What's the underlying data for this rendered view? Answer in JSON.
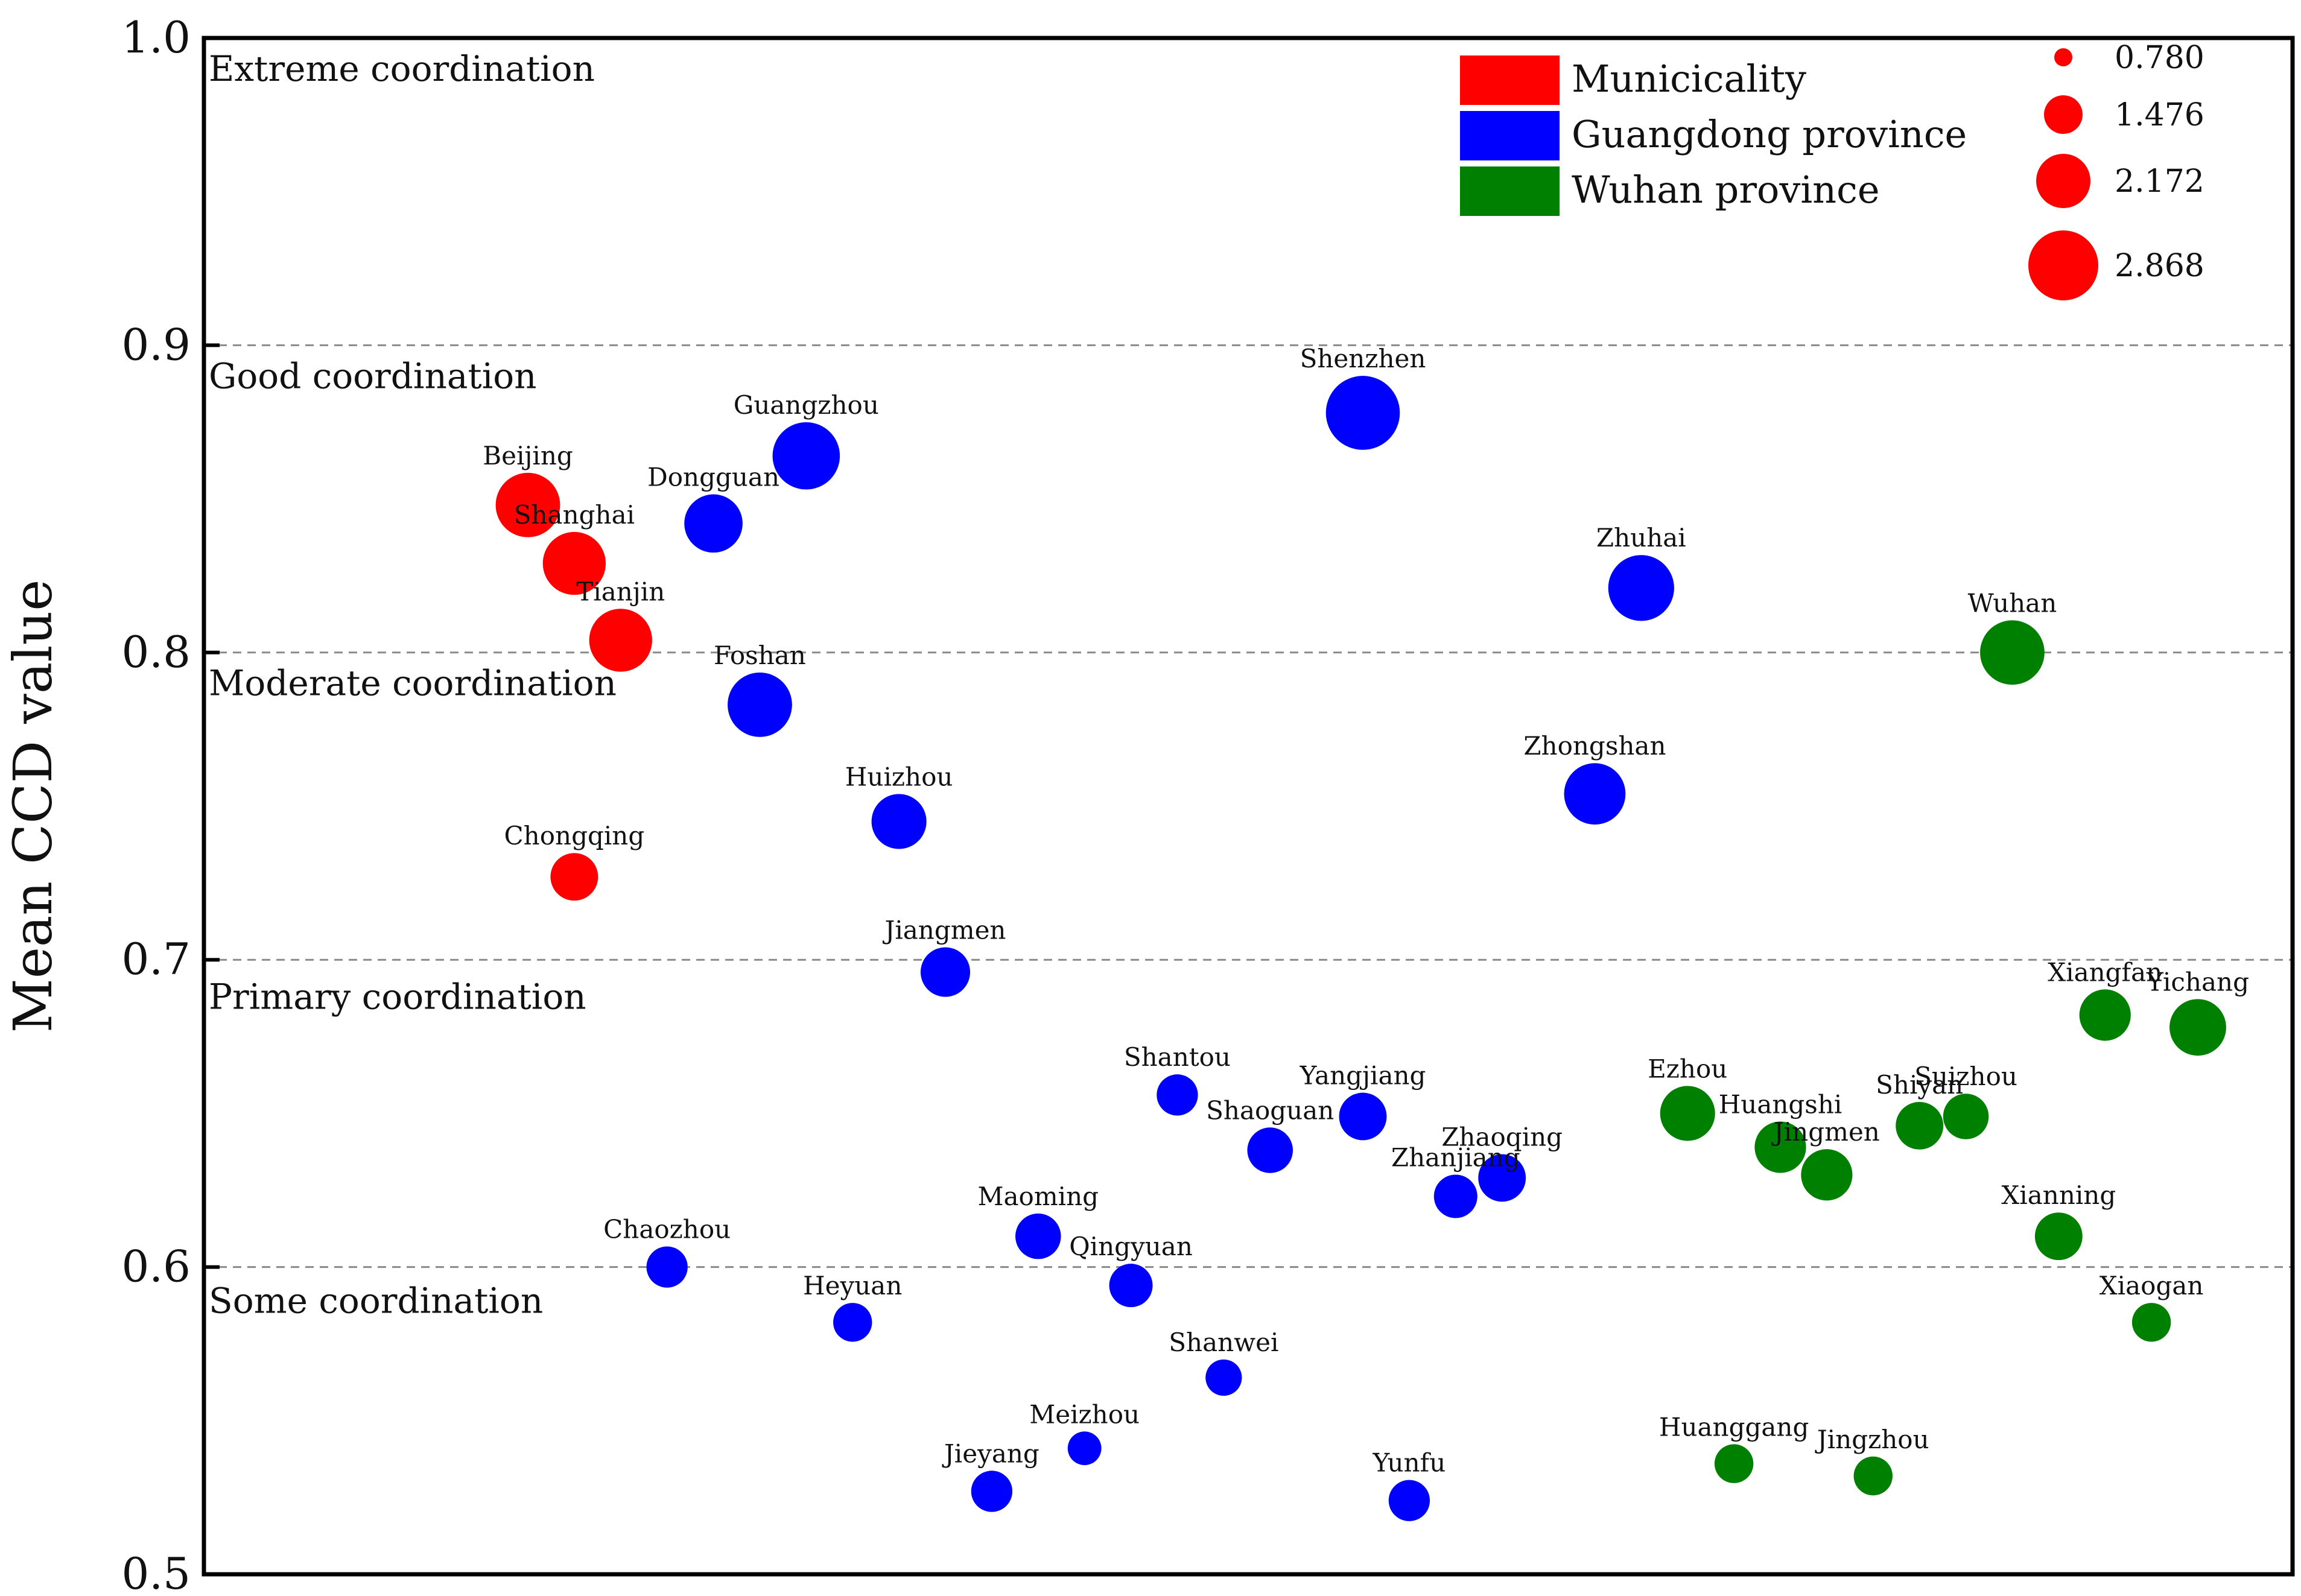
{
  "chart_data": {
    "type": "scatter",
    "ylabel": "Mean CCD value",
    "xlabel": "",
    "ylim": [
      0.5,
      1.0
    ],
    "y_ticks": [
      "0.5",
      "0.6",
      "0.7",
      "0.8",
      "0.9",
      "1.0"
    ],
    "grid": "dashed lines at 0.6, 0.7, 0.8, 0.9",
    "coordination_bands": [
      {
        "label": "Extreme coordination",
        "y": 0.99
      },
      {
        "label": "Good coordination",
        "y": 0.89
      },
      {
        "label": "Moderate coordination",
        "y": 0.79
      },
      {
        "label": "Primary coordination",
        "y": 0.688
      },
      {
        "label": "Some coordination",
        "y": 0.589
      }
    ],
    "legend": {
      "placement": "top-right",
      "groups": [
        {
          "key": "municipality",
          "label": "Municicality",
          "color": "#ff0000"
        },
        {
          "key": "guangdong",
          "label": "Guangdong province",
          "color": "#0000ff"
        },
        {
          "key": "wuhan",
          "label": "Wuhan province",
          "color": "#008000"
        }
      ],
      "sizes": [
        {
          "label": "0.780",
          "value": 0.78
        },
        {
          "label": "1.476",
          "value": 1.476
        },
        {
          "label": "2.172",
          "value": 2.172
        },
        {
          "label": "2.868",
          "value": 2.868
        }
      ]
    },
    "points": [
      {
        "name": "Beijing",
        "group": "municipality",
        "x": 1,
        "y": 0.848,
        "size": 2.2
      },
      {
        "name": "Shanghai",
        "group": "municipality",
        "x": 2,
        "y": 0.829,
        "size": 2.1
      },
      {
        "name": "Tianjin",
        "group": "municipality",
        "x": 3,
        "y": 0.804,
        "size": 2.1
      },
      {
        "name": "Chongqing",
        "group": "municipality",
        "x": 2,
        "y": 0.727,
        "size": 1.2
      },
      {
        "name": "Guangzhou",
        "group": "guangdong",
        "x": 7,
        "y": 0.864,
        "size": 2.4
      },
      {
        "name": "Dongguan",
        "group": "guangdong",
        "x": 5,
        "y": 0.842,
        "size": 1.8
      },
      {
        "name": "Foshan",
        "group": "guangdong",
        "x": 6,
        "y": 0.783,
        "size": 2.2
      },
      {
        "name": "Huizhou",
        "group": "guangdong",
        "x": 9,
        "y": 0.745,
        "size": 1.6
      },
      {
        "name": "Jiangmen",
        "group": "guangdong",
        "x": 10,
        "y": 0.696,
        "size": 1.3
      },
      {
        "name": "Shenzhen",
        "group": "guangdong",
        "x": 19,
        "y": 0.878,
        "size": 2.9
      },
      {
        "name": "Zhuhai",
        "group": "guangdong",
        "x": 25,
        "y": 0.821,
        "size": 2.3
      },
      {
        "name": "Zhongshan",
        "group": "guangdong",
        "x": 24,
        "y": 0.754,
        "size": 2.0
      },
      {
        "name": "Shantou",
        "group": "guangdong",
        "x": 15,
        "y": 0.656,
        "size": 0.9
      },
      {
        "name": "Yangjiang",
        "group": "guangdong",
        "x": 19,
        "y": 0.649,
        "size": 1.2
      },
      {
        "name": "Shaoguan",
        "group": "guangdong",
        "x": 17,
        "y": 0.638,
        "size": 1.1
      },
      {
        "name": "Zhanjiang",
        "group": "guangdong",
        "x": 21,
        "y": 0.623,
        "size": 1.0
      },
      {
        "name": "Zhaoqing",
        "group": "guangdong",
        "x": 22,
        "y": 0.629,
        "size": 1.2
      },
      {
        "name": "Maoming",
        "group": "guangdong",
        "x": 12,
        "y": 0.61,
        "size": 1.1
      },
      {
        "name": "Qingyuan",
        "group": "guangdong",
        "x": 14,
        "y": 0.594,
        "size": 1.0
      },
      {
        "name": "Chaozhou",
        "group": "guangdong",
        "x": 4,
        "y": 0.6,
        "size": 0.9
      },
      {
        "name": "Heyuan",
        "group": "guangdong",
        "x": 8,
        "y": 0.582,
        "size": 0.8
      },
      {
        "name": "Shanwei",
        "group": "guangdong",
        "x": 16,
        "y": 0.564,
        "size": 0.7
      },
      {
        "name": "Meizhou",
        "group": "guangdong",
        "x": 13,
        "y": 0.541,
        "size": 0.6
      },
      {
        "name": "Jieyang",
        "group": "guangdong",
        "x": 11,
        "y": 0.527,
        "size": 0.9
      },
      {
        "name": "Yunfu",
        "group": "guangdong",
        "x": 20,
        "y": 0.524,
        "size": 0.9
      },
      {
        "name": "Wuhan",
        "group": "wuhan",
        "x": 33,
        "y": 0.8,
        "size": 2.2
      },
      {
        "name": "Xiangfan",
        "group": "wuhan",
        "x": 35,
        "y": 0.682,
        "size": 1.4
      },
      {
        "name": "Yichang",
        "group": "wuhan",
        "x": 37,
        "y": 0.678,
        "size": 1.7
      },
      {
        "name": "Ezhou",
        "group": "wuhan",
        "x": 26,
        "y": 0.65,
        "size": 1.6
      },
      {
        "name": "Huangshi",
        "group": "wuhan",
        "x": 28,
        "y": 0.639,
        "size": 1.4
      },
      {
        "name": "Jingmen",
        "group": "wuhan",
        "x": 29,
        "y": 0.63,
        "size": 1.4
      },
      {
        "name": "Shiyan",
        "group": "wuhan",
        "x": 31,
        "y": 0.646,
        "size": 1.2
      },
      {
        "name": "Suizhou",
        "group": "wuhan",
        "x": 32,
        "y": 0.649,
        "size": 1.1
      },
      {
        "name": "Xianning",
        "group": "wuhan",
        "x": 34,
        "y": 0.61,
        "size": 1.2
      },
      {
        "name": "Xiaogan",
        "group": "wuhan",
        "x": 36,
        "y": 0.582,
        "size": 0.8
      },
      {
        "name": "Huanggang",
        "group": "wuhan",
        "x": 27,
        "y": 0.536,
        "size": 0.8
      },
      {
        "name": "Jingzhou",
        "group": "wuhan",
        "x": 30,
        "y": 0.532,
        "size": 0.8
      }
    ]
  }
}
